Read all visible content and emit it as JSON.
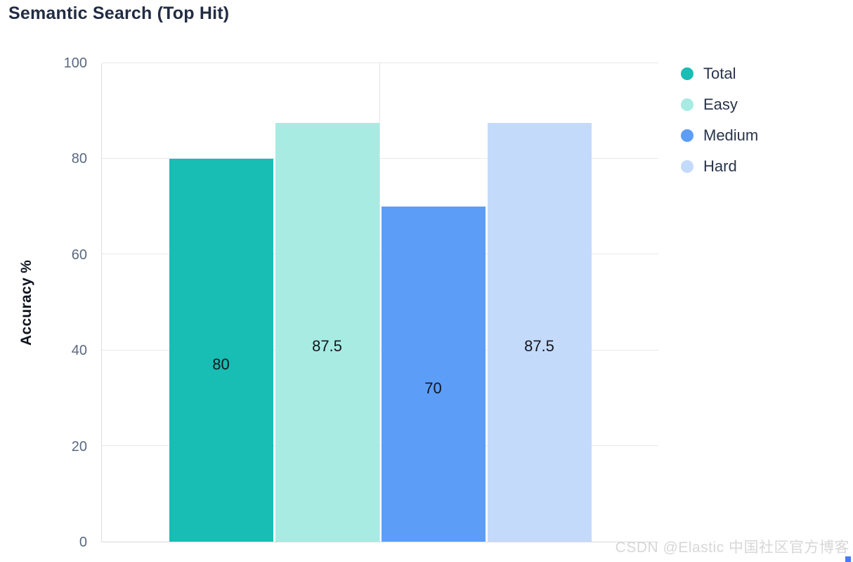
{
  "page": {
    "watermark": "CSDN @Elastic 中国社区官方博客"
  },
  "chart_data": {
    "type": "bar",
    "title": "Semantic Search (Top Hit)",
    "xlabel": "",
    "ylabel": "Accuracy %",
    "ylim": [
      0,
      100
    ],
    "yticks": [
      0,
      20,
      40,
      60,
      80,
      100
    ],
    "grid": true,
    "legend_position": "right",
    "categories": [
      "Total",
      "Easy",
      "Medium",
      "Hard"
    ],
    "series": [
      {
        "name": "Total",
        "value": 80,
        "label": "80",
        "color": "#18bdb4"
      },
      {
        "name": "Easy",
        "value": 87.5,
        "label": "87.5",
        "color": "#a7ebe3"
      },
      {
        "name": "Medium",
        "value": 70,
        "label": "70",
        "color": "#5c9df8"
      },
      {
        "name": "Hard",
        "value": 87.5,
        "label": "87.5",
        "color": "#c4dafb"
      }
    ],
    "colors": {
      "grid": "#e9e9ee",
      "axis": "#d8d8dd",
      "tick_text": "#5b6880",
      "title_text": "#222c43",
      "value_text": "#14161c"
    }
  }
}
